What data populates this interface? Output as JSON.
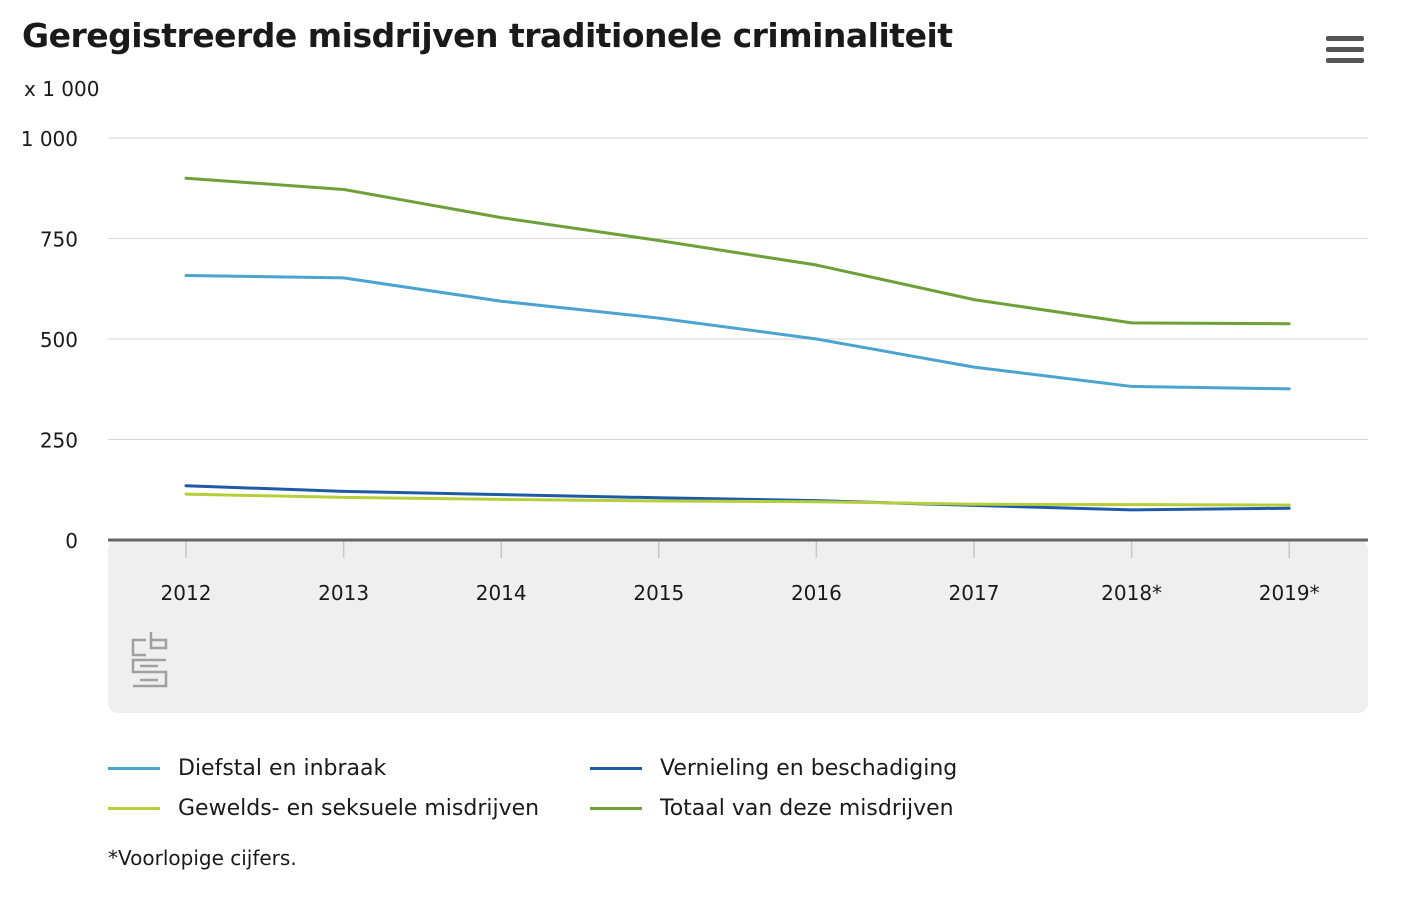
{
  "header": {
    "title": "Geregistreerde misdrijven traditionele criminaliteit",
    "unit": "x 1 000",
    "menu_icon": "hamburger-menu-icon"
  },
  "chart_data": {
    "type": "line",
    "title": "Geregistreerde misdrijven traditionele criminaliteit",
    "ylabel": "x 1 000",
    "xlabel": "",
    "ylim": [
      0,
      1000
    ],
    "yticks": [
      0,
      250,
      500,
      750,
      1000
    ],
    "ytick_labels": [
      "0",
      "250",
      "500",
      "750",
      "1 000"
    ],
    "categories": [
      "2012",
      "2013",
      "2014",
      "2015",
      "2016",
      "2017",
      "2018*",
      "2019*"
    ],
    "grid": true,
    "legend_position": "bottom",
    "series": [
      {
        "name": "Diefstal en inbraak",
        "color": "#4ba3cf",
        "values": [
          658,
          652,
          594,
          552,
          500,
          430,
          382,
          376
        ]
      },
      {
        "name": "Vernieling en beschadiging",
        "color": "#1f5aa6",
        "values": [
          135,
          121,
          113,
          105,
          98,
          86,
          75,
          79
        ]
      },
      {
        "name": "Gewelds- en seksuele misdrijven",
        "color": "#b5cf3a",
        "values": [
          114,
          106,
          101,
          97,
          95,
          89,
          88,
          87
        ]
      },
      {
        "name": "Totaal van deze misdrijven",
        "color": "#6ea03a",
        "values": [
          900,
          872,
          802,
          745,
          684,
          598,
          540,
          538
        ]
      }
    ],
    "footnote": "*Voorlopige cijfers."
  },
  "logo": {
    "name": "cbs-logo-icon"
  }
}
